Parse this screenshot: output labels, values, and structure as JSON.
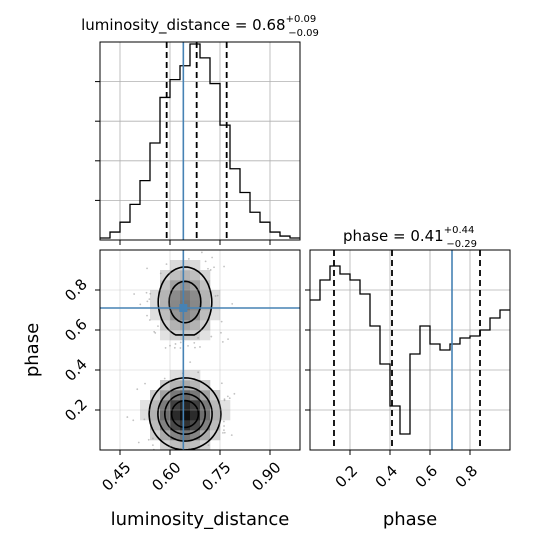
{
  "colors": {
    "truth": "#4682b4",
    "hist": "#000000",
    "grid": "#b0b0b0",
    "axes": "#000000"
  },
  "chart_data": [
    {
      "type": "histogram",
      "panel": "luminosity_distance marginal",
      "title": {
        "param": "luminosity_distance",
        "value": "0.68",
        "plus": "+0.09",
        "minus": "−0.09"
      },
      "xlim": [
        0.39,
        0.99
      ],
      "ylim": [
        0,
        1
      ],
      "x_ticks": [
        0.45,
        0.6,
        0.75,
        0.9
      ],
      "bin_edges": [
        0.39,
        0.42,
        0.45,
        0.48,
        0.51,
        0.54,
        0.57,
        0.6,
        0.63,
        0.66,
        0.69,
        0.72,
        0.75,
        0.78,
        0.81,
        0.84,
        0.87,
        0.9,
        0.93,
        0.96,
        0.99
      ],
      "values": [
        0.01,
        0.04,
        0.09,
        0.18,
        0.3,
        0.49,
        0.72,
        0.81,
        0.88,
        0.99,
        0.92,
        0.79,
        0.58,
        0.36,
        0.24,
        0.14,
        0.09,
        0.04,
        0.02,
        0.01
      ],
      "quantiles": [
        0.59,
        0.68,
        0.77
      ],
      "truth": 0.64,
      "grid": true
    },
    {
      "type": "histogram",
      "panel": "phase marginal",
      "title": {
        "param": "phase",
        "value": "0.41",
        "plus": "+0.44",
        "minus": "−0.29"
      },
      "xlim": [
        0.0,
        1.0
      ],
      "ylim": [
        0,
        1
      ],
      "x_ticks": [
        0.2,
        0.4,
        0.6,
        0.8
      ],
      "xlabel": "phase",
      "bin_edges": [
        0.0,
        0.05,
        0.1,
        0.15,
        0.2,
        0.25,
        0.3,
        0.35,
        0.4,
        0.45,
        0.5,
        0.55,
        0.6,
        0.65,
        0.7,
        0.75,
        0.8,
        0.85,
        0.9,
        0.95,
        1.0
      ],
      "values": [
        0.75,
        0.85,
        0.92,
        0.88,
        0.85,
        0.78,
        0.62,
        0.43,
        0.22,
        0.08,
        0.48,
        0.62,
        0.53,
        0.5,
        0.53,
        0.56,
        0.57,
        0.6,
        0.66,
        0.7
      ],
      "quantiles": [
        0.12,
        0.41,
        0.85
      ],
      "truth": 0.71,
      "grid": true
    },
    {
      "type": "heatmap",
      "panel": "luminosity_distance vs phase 2D density",
      "xlabel": "luminosity_distance",
      "ylabel": "phase",
      "xlim": [
        0.39,
        0.99
      ],
      "ylim": [
        0.0,
        1.0
      ],
      "x_ticks": [
        0.45,
        0.6,
        0.75,
        0.9
      ],
      "y_ticks": [
        0.2,
        0.4,
        0.6,
        0.8
      ],
      "truth": {
        "x": 0.64,
        "y": 0.71
      },
      "modes": [
        {
          "x": 0.645,
          "y": 0.18,
          "sx": 0.06,
          "sy": 0.1,
          "weight": 1.0
        },
        {
          "x": 0.645,
          "y": 0.74,
          "sx": 0.055,
          "sy": 0.12,
          "weight": 0.58
        }
      ],
      "contour_levels": [
        0.2,
        0.4,
        0.6,
        0.8
      ],
      "grid": true
    }
  ]
}
